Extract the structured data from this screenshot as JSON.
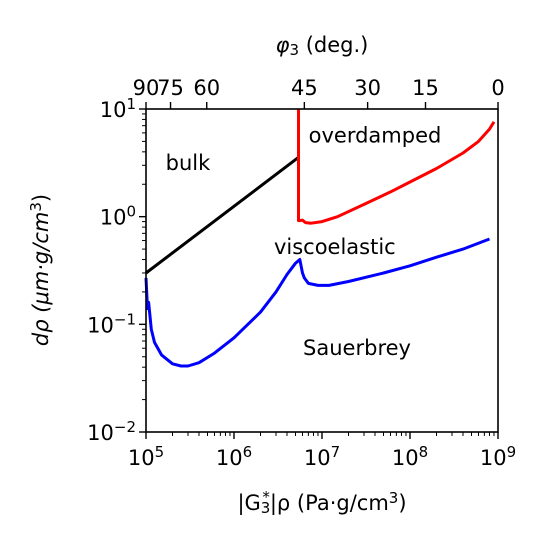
{
  "chart_data": {
    "type": "line",
    "x_scale": "log",
    "y_scale": "log",
    "xlim": [
      100000,
      1000000000
    ],
    "ylim": [
      0.01,
      10
    ],
    "xlabel": {
      "pre": "|G",
      "sub": "3",
      "sup": "*",
      "post": "|ρ (Pa·g/cm",
      "post_sup": "3",
      "end": ")"
    },
    "ylabel": {
      "pre": "dρ (μm·g/cm",
      "sup": "3",
      "end": ")"
    },
    "top_xlabel": {
      "pre": "φ",
      "sub": "3",
      "post": " (deg.)"
    },
    "x_ticks": [
      {
        "value": 100000,
        "base": "10",
        "exp": "5"
      },
      {
        "value": 1000000,
        "base": "10",
        "exp": "6"
      },
      {
        "value": 10000000,
        "base": "10",
        "exp": "7"
      },
      {
        "value": 100000000,
        "base": "10",
        "exp": "8"
      },
      {
        "value": 1000000000,
        "base": "10",
        "exp": "9"
      }
    ],
    "y_ticks": [
      {
        "value": 0.01,
        "base": "10",
        "exp": "−2"
      },
      {
        "value": 0.1,
        "base": "10",
        "exp": "−1"
      },
      {
        "value": 1,
        "base": "10",
        "exp": "0"
      },
      {
        "value": 10,
        "base": "10",
        "exp": "1"
      }
    ],
    "top_ticks": [
      {
        "label": "90",
        "x": 100000
      },
      {
        "label": "75",
        "x": 190000
      },
      {
        "label": "60",
        "x": 490000
      },
      {
        "label": "45",
        "x": 6300000
      },
      {
        "label": "30",
        "x": 33000000
      },
      {
        "label": "15",
        "x": 150000000
      },
      {
        "label": "0",
        "x": 1000000000
      }
    ],
    "region_labels": [
      {
        "text": "bulk",
        "x": 300000,
        "y": 2.7
      },
      {
        "text": "overdamped",
        "x": 40000000,
        "y": 4.9
      },
      {
        "text": "viscoelastic",
        "x": 14000000,
        "y": 0.45
      },
      {
        "text": "Sauerbrey",
        "x": 25000000,
        "y": 0.052
      }
    ],
    "series": [
      {
        "color": "#000000",
        "points": [
          [
            100000,
            0.3
          ],
          [
            5500000,
            3.6
          ]
        ]
      },
      {
        "color": "#ff0000",
        "points": [
          [
            5400000,
            10
          ],
          [
            5400000,
            0.92
          ],
          [
            5600000,
            0.92
          ],
          [
            6000000,
            0.93
          ],
          [
            6500000,
            0.88
          ],
          [
            7500000,
            0.87
          ],
          [
            10000000,
            0.9
          ],
          [
            15000000,
            1.0
          ],
          [
            30000000,
            1.3
          ],
          [
            60000000,
            1.7
          ],
          [
            100000000,
            2.1
          ],
          [
            200000000,
            2.8
          ],
          [
            400000000,
            3.9
          ],
          [
            600000000,
            5.0
          ],
          [
            800000000,
            6.5
          ],
          [
            900000000,
            7.6
          ]
        ]
      },
      {
        "color": "#0000ff",
        "points": [
          [
            100000,
            0.27
          ],
          [
            102000,
            0.19
          ],
          [
            104000,
            0.14
          ],
          [
            107000,
            0.16
          ],
          [
            110000,
            0.13
          ],
          [
            115000,
            0.09
          ],
          [
            125000,
            0.068
          ],
          [
            150000,
            0.052
          ],
          [
            200000,
            0.043
          ],
          [
            250000,
            0.041
          ],
          [
            300000,
            0.041
          ],
          [
            400000,
            0.044
          ],
          [
            600000,
            0.054
          ],
          [
            1000000,
            0.075
          ],
          [
            2000000,
            0.13
          ],
          [
            3000000,
            0.2
          ],
          [
            4000000,
            0.29
          ],
          [
            5000000,
            0.37
          ],
          [
            5600000,
            0.4
          ],
          [
            6000000,
            0.3
          ],
          [
            6300000,
            0.27
          ],
          [
            7000000,
            0.24
          ],
          [
            9000000,
            0.23
          ],
          [
            12000000,
            0.23
          ],
          [
            20000000,
            0.25
          ],
          [
            50000000,
            0.3
          ],
          [
            100000000,
            0.35
          ],
          [
            200000000,
            0.42
          ],
          [
            400000000,
            0.5
          ],
          [
            800000000,
            0.62
          ]
        ]
      }
    ]
  }
}
